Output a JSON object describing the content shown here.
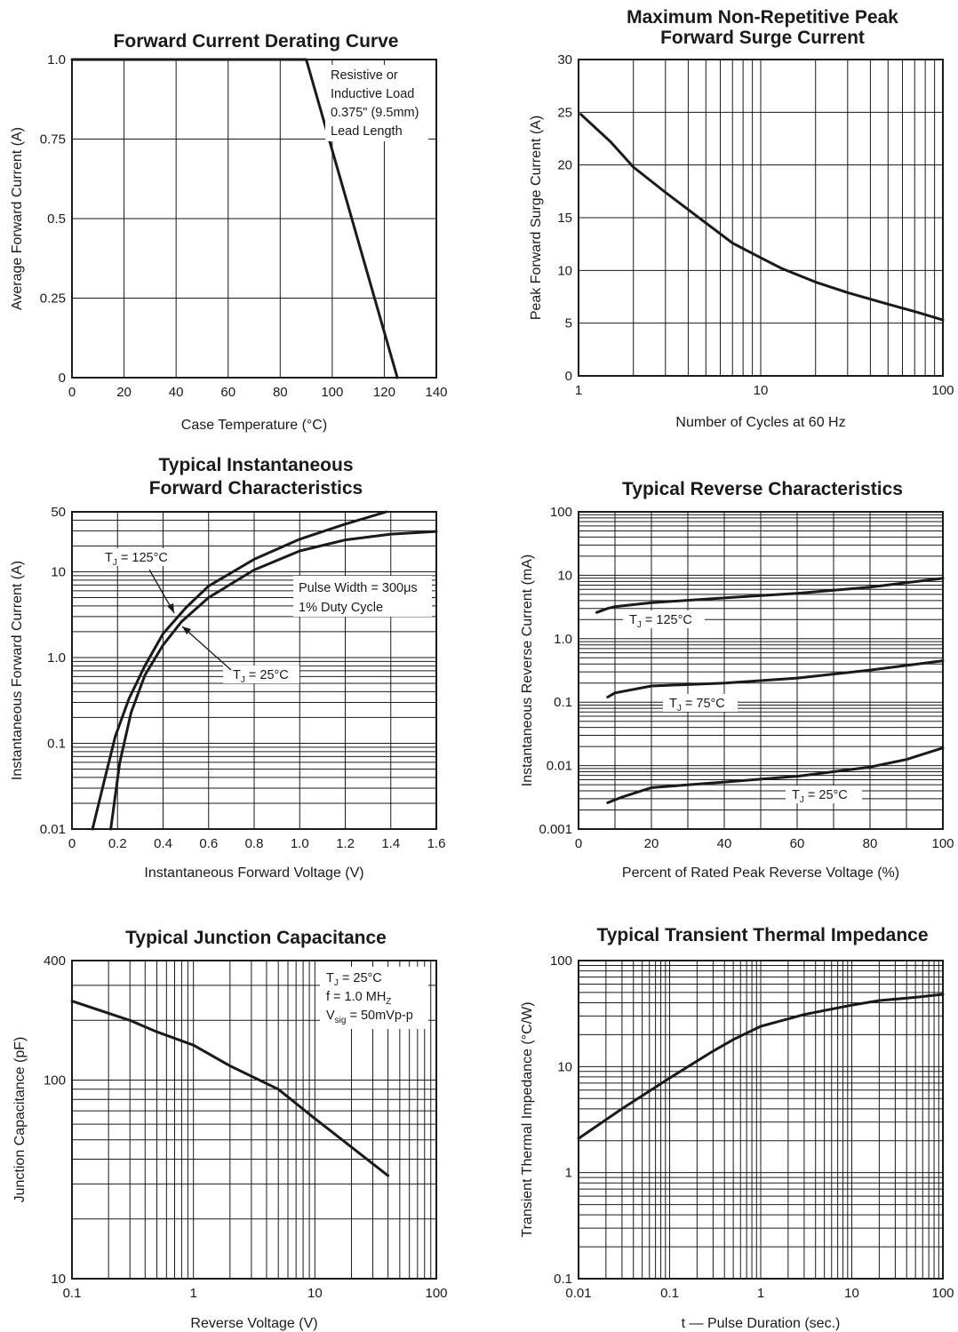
{
  "colors": {
    "ink": "#1a1a1a",
    "background": "#ffffff"
  },
  "chart_data": [
    {
      "type": "line",
      "title": "Forward Current Derating Curve",
      "xlabel": "Case Temperature (°C)",
      "ylabel": "Average Forward Current (A)",
      "xlim": [
        0,
        140
      ],
      "ylim": [
        0,
        1.0
      ],
      "xscale": "linear",
      "yscale": "linear",
      "x_ticks": [
        "0",
        "20",
        "40",
        "60",
        "80",
        "100",
        "120",
        "140"
      ],
      "y_ticks": [
        "0",
        "0.25",
        "0.5",
        "0.75",
        "1.0"
      ],
      "grid": "on",
      "series": [
        {
          "x": [
            0,
            90,
            125
          ],
          "y": [
            1.0,
            1.0,
            0
          ]
        }
      ],
      "annotations": [
        {
          "lines": [
            "Resistive or",
            "Inductive Load",
            "0.375\" (9.5mm)",
            "Lead Length"
          ]
        }
      ]
    },
    {
      "type": "line",
      "title": "Maximum Non-Repetitive Peak Forward Surge Current",
      "title_lines": [
        "Maximum Non-Repetitive Peak",
        "Forward Surge Current"
      ],
      "xlabel": "Number of Cycles at 60 Hz",
      "ylabel": "Peak Forward Surge Current (A)",
      "xlim": [
        1,
        100
      ],
      "ylim": [
        0,
        30
      ],
      "xscale": "log",
      "yscale": "linear",
      "x_ticks": [
        "1",
        "10",
        "100"
      ],
      "y_ticks": [
        "0",
        "5",
        "10",
        "15",
        "20",
        "25",
        "30"
      ],
      "grid": "on",
      "series": [
        {
          "x": [
            1.03,
            1.5,
            2,
            3,
            5,
            7,
            10,
            13,
            20,
            30,
            50,
            70,
            100
          ],
          "y": [
            24.8,
            22.2,
            19.8,
            17.4,
            14.5,
            12.6,
            11.2,
            10.2,
            8.9,
            7.9,
            6.8,
            6.1,
            5.3
          ]
        }
      ]
    },
    {
      "type": "line",
      "title": "Typical Instantaneous Forward Characteristics",
      "title_lines": [
        "Typical Instantaneous",
        "Forward Characteristics"
      ],
      "xlabel": "Instantaneous Forward Voltage (V)",
      "ylabel": "Instantaneous Forward Current (A)",
      "xlim": [
        0,
        1.6
      ],
      "ylim": [
        0.01,
        50
      ],
      "xscale": "linear",
      "yscale": "log",
      "x_ticks": [
        "0",
        "0.2",
        "0.4",
        "0.6",
        "0.8",
        "1.0",
        "1.2",
        "1.4",
        "1.6"
      ],
      "y_ticks": [
        "0.01",
        "0.1",
        "1.0",
        "10",
        "50"
      ],
      "grid": "on",
      "series": [
        {
          "name": "T₁ = 125°C",
          "x": [
            0.09,
            0.14,
            0.19,
            0.25,
            0.32,
            0.4,
            0.5,
            0.6,
            0.8,
            1.0,
            1.2,
            1.38
          ],
          "y": [
            0.01,
            0.035,
            0.12,
            0.33,
            0.8,
            1.9,
            3.8,
            6.8,
            14,
            24,
            36,
            50
          ]
        },
        {
          "name": "T₁ = 25°C",
          "x": [
            0.17,
            0.21,
            0.26,
            0.32,
            0.4,
            0.48,
            0.6,
            0.8,
            1.0,
            1.2,
            1.4,
            1.6
          ],
          "y": [
            0.01,
            0.06,
            0.23,
            0.62,
            1.4,
            2.6,
            5.0,
            10.5,
            17.5,
            23.5,
            27.5,
            29.5
          ]
        }
      ],
      "labels": [
        {
          "main": "T",
          "sub": "J",
          "rest": " = 125°C"
        },
        {
          "main": "T",
          "sub": "J",
          "rest": " = 25°C"
        }
      ],
      "annotations": [
        {
          "lines": [
            "Pulse Width = 300μs",
            "1% Duty Cycle"
          ]
        }
      ]
    },
    {
      "type": "line",
      "title": "Typical Reverse Characteristics",
      "xlabel": "Percent of Rated Peak Reverse Voltage (%)",
      "ylabel": "Instantaneous Reverse Current (mA)",
      "xlim": [
        0,
        100
      ],
      "ylim": [
        0.001,
        100
      ],
      "xscale": "linear",
      "yscale": "log",
      "x_ticks": [
        "0",
        "20",
        "40",
        "60",
        "80",
        "100"
      ],
      "y_ticks": [
        "0.001",
        "0.01",
        "0.1",
        "1.0",
        "10",
        "100"
      ],
      "grid": "on",
      "series": [
        {
          "name": "TJ = 125°C",
          "x": [
            5,
            8,
            10,
            20,
            40,
            60,
            80,
            100
          ],
          "y": [
            2.6,
            3.0,
            3.2,
            3.7,
            4.4,
            5.2,
            6.5,
            9.0
          ]
        },
        {
          "name": "TJ = 75°C",
          "x": [
            8,
            10,
            20,
            40,
            60,
            80,
            100
          ],
          "y": [
            0.12,
            0.14,
            0.18,
            0.2,
            0.24,
            0.32,
            0.45
          ]
        },
        {
          "name": "TJ = 25°C",
          "x": [
            8,
            12,
            20,
            40,
            60,
            80,
            90,
            100
          ],
          "y": [
            0.0026,
            0.0032,
            0.0045,
            0.0055,
            0.0068,
            0.0095,
            0.0125,
            0.019
          ]
        }
      ],
      "labels": [
        {
          "main": "T",
          "sub": "J",
          "rest": " = 125°C"
        },
        {
          "main": "T",
          "sub": "J",
          "rest": " = 75°C"
        },
        {
          "main": "T",
          "sub": "J",
          "rest": " = 25°C"
        }
      ]
    },
    {
      "type": "line",
      "title": "Typical Junction Capacitance",
      "xlabel": "Reverse Voltage (V)",
      "ylabel": "Junction Capacitance (pF)",
      "xlim": [
        0.1,
        100
      ],
      "ylim": [
        10,
        400
      ],
      "xscale": "log",
      "yscale": "log",
      "x_ticks": [
        "0.1",
        "1",
        "10",
        "100"
      ],
      "y_ticks": [
        "10",
        "100",
        "400"
      ],
      "grid": "on",
      "series": [
        {
          "x": [
            0.1,
            0.3,
            0.5,
            1,
            2,
            5,
            10,
            20,
            40
          ],
          "y": [
            250,
            200,
            175,
            150,
            118,
            90,
            64,
            46,
            33
          ]
        }
      ],
      "annotations": [
        {
          "main": "T",
          "sub": "J",
          "rest": " = 25°C"
        },
        {
          "main": "f = 1.0 MH",
          "sub": "Z",
          "rest": ""
        },
        {
          "main": "V",
          "sub": "sig",
          "rest": " = 50mVp-p"
        }
      ]
    },
    {
      "type": "line",
      "title": "Typical Transient Thermal Impedance",
      "xlabel": "t — Pulse Duration (sec.)",
      "ylabel": "Transient Thermal Impedance (°C/W)",
      "xlim": [
        0.01,
        100
      ],
      "ylim": [
        0.1,
        100
      ],
      "xscale": "log",
      "yscale": "log",
      "x_ticks": [
        "0.01",
        "0.1",
        "1",
        "10",
        "100"
      ],
      "y_ticks": [
        "0.1",
        "1",
        "10",
        "100"
      ],
      "grid": "on",
      "series": [
        {
          "x": [
            0.01,
            0.03,
            0.1,
            0.3,
            0.5,
            1,
            3,
            10,
            20,
            50,
            100
          ],
          "y": [
            2.1,
            4.0,
            7.8,
            14,
            18,
            24,
            31,
            38,
            42,
            45,
            48
          ]
        }
      ]
    }
  ]
}
